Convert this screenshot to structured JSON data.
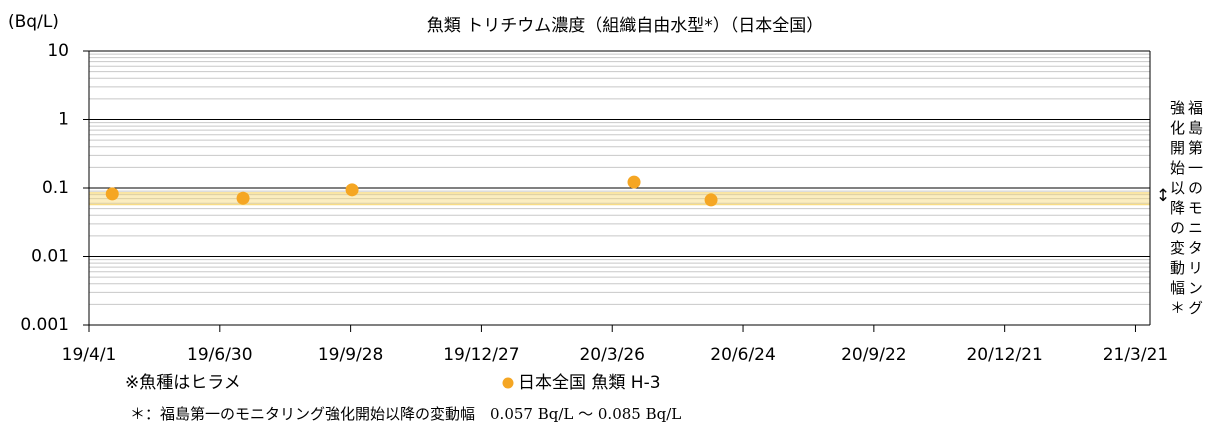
{
  "chart_data": {
    "type": "scatter",
    "title": "魚類 トリチウム濃度（組織自由水型*）（日本全国）",
    "y_label": "(Bq/L)",
    "log_scale_y": true,
    "grid": true,
    "series": [
      {
        "name": "日本全国 魚類 H-3",
        "color": "#f5a623",
        "x": [
          "2019-04-17",
          "2019-07-16",
          "2019-09-29",
          "2020-04-10",
          "2020-06-02"
        ],
        "values": [
          0.082,
          0.071,
          0.094,
          0.122,
          0.067
        ]
      }
    ],
    "xlim": [
      "2019-04-01",
      "2021-03-31"
    ],
    "xticks": [
      {
        "value": "2019-04-01",
        "label": "19/4/1"
      },
      {
        "value": "2019-06-30",
        "label": "19/6/30"
      },
      {
        "value": "2019-09-28",
        "label": "19/9/28"
      },
      {
        "value": "2019-12-27",
        "label": "19/12/27"
      },
      {
        "value": "2020-03-26",
        "label": "20/3/26"
      },
      {
        "value": "2020-06-24",
        "label": "20/6/24"
      },
      {
        "value": "2020-09-22",
        "label": "20/9/22"
      },
      {
        "value": "2020-12-21",
        "label": "20/12/21"
      },
      {
        "value": "2021-03-21",
        "label": "21/3/21"
      }
    ],
    "ylim": [
      0.001,
      10
    ],
    "yticks": [
      0.001,
      0.01,
      0.1,
      1,
      10
    ],
    "band": [
      0.057,
      0.085
    ],
    "band_color": "#f7d774",
    "band_label": "福島第一のモニタリング強化開始以降の変動幅＊",
    "note_species": "※魚種はヒラメ",
    "footnote": "＊：福島第一のモニタリング強化開始以降の変動幅　0.057 Bq/L ～ 0.085 Bq/L"
  }
}
